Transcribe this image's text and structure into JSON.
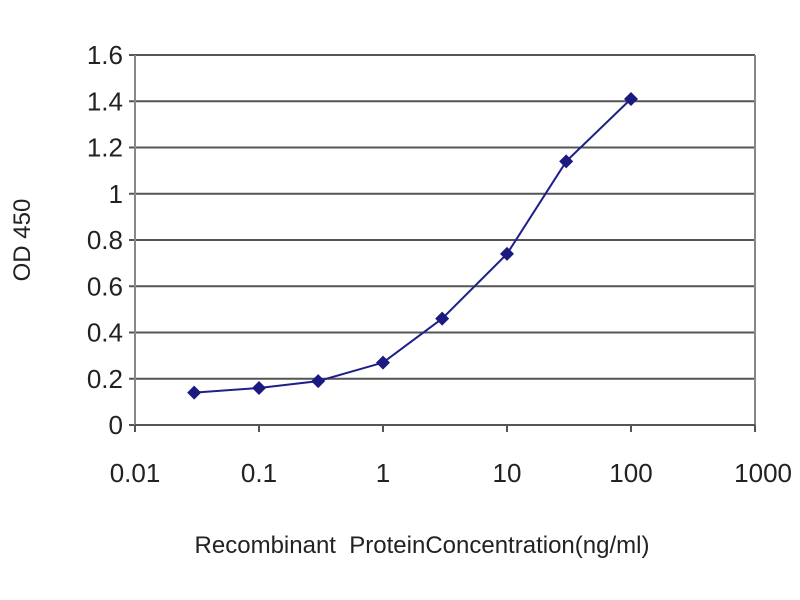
{
  "chart_data": {
    "type": "line",
    "title": "",
    "xlabel": "Recombinant  ProteinConcentration(ng/ml)",
    "ylabel": "OD 450",
    "x_scale": "log",
    "xlim": [
      0.01,
      1000
    ],
    "ylim": [
      0,
      1.6
    ],
    "x_ticks": [
      "0.01",
      "0.1",
      "1",
      "10",
      "100",
      "1000"
    ],
    "y_ticks": [
      "0",
      "0.2",
      "0.4",
      "0.6",
      "0.8",
      "1",
      "1.2",
      "1.4",
      "1.6"
    ],
    "grid": "horizontal",
    "legend": "none",
    "line_color": "#1f1f8c",
    "marker_color": "#1a1a80",
    "series": [
      {
        "x": [
          0.03,
          0.1,
          0.3,
          1,
          3,
          10,
          30,
          100
        ],
        "y": [
          0.14,
          0.16,
          0.19,
          0.27,
          0.46,
          0.74,
          1.14,
          1.41
        ]
      }
    ]
  }
}
